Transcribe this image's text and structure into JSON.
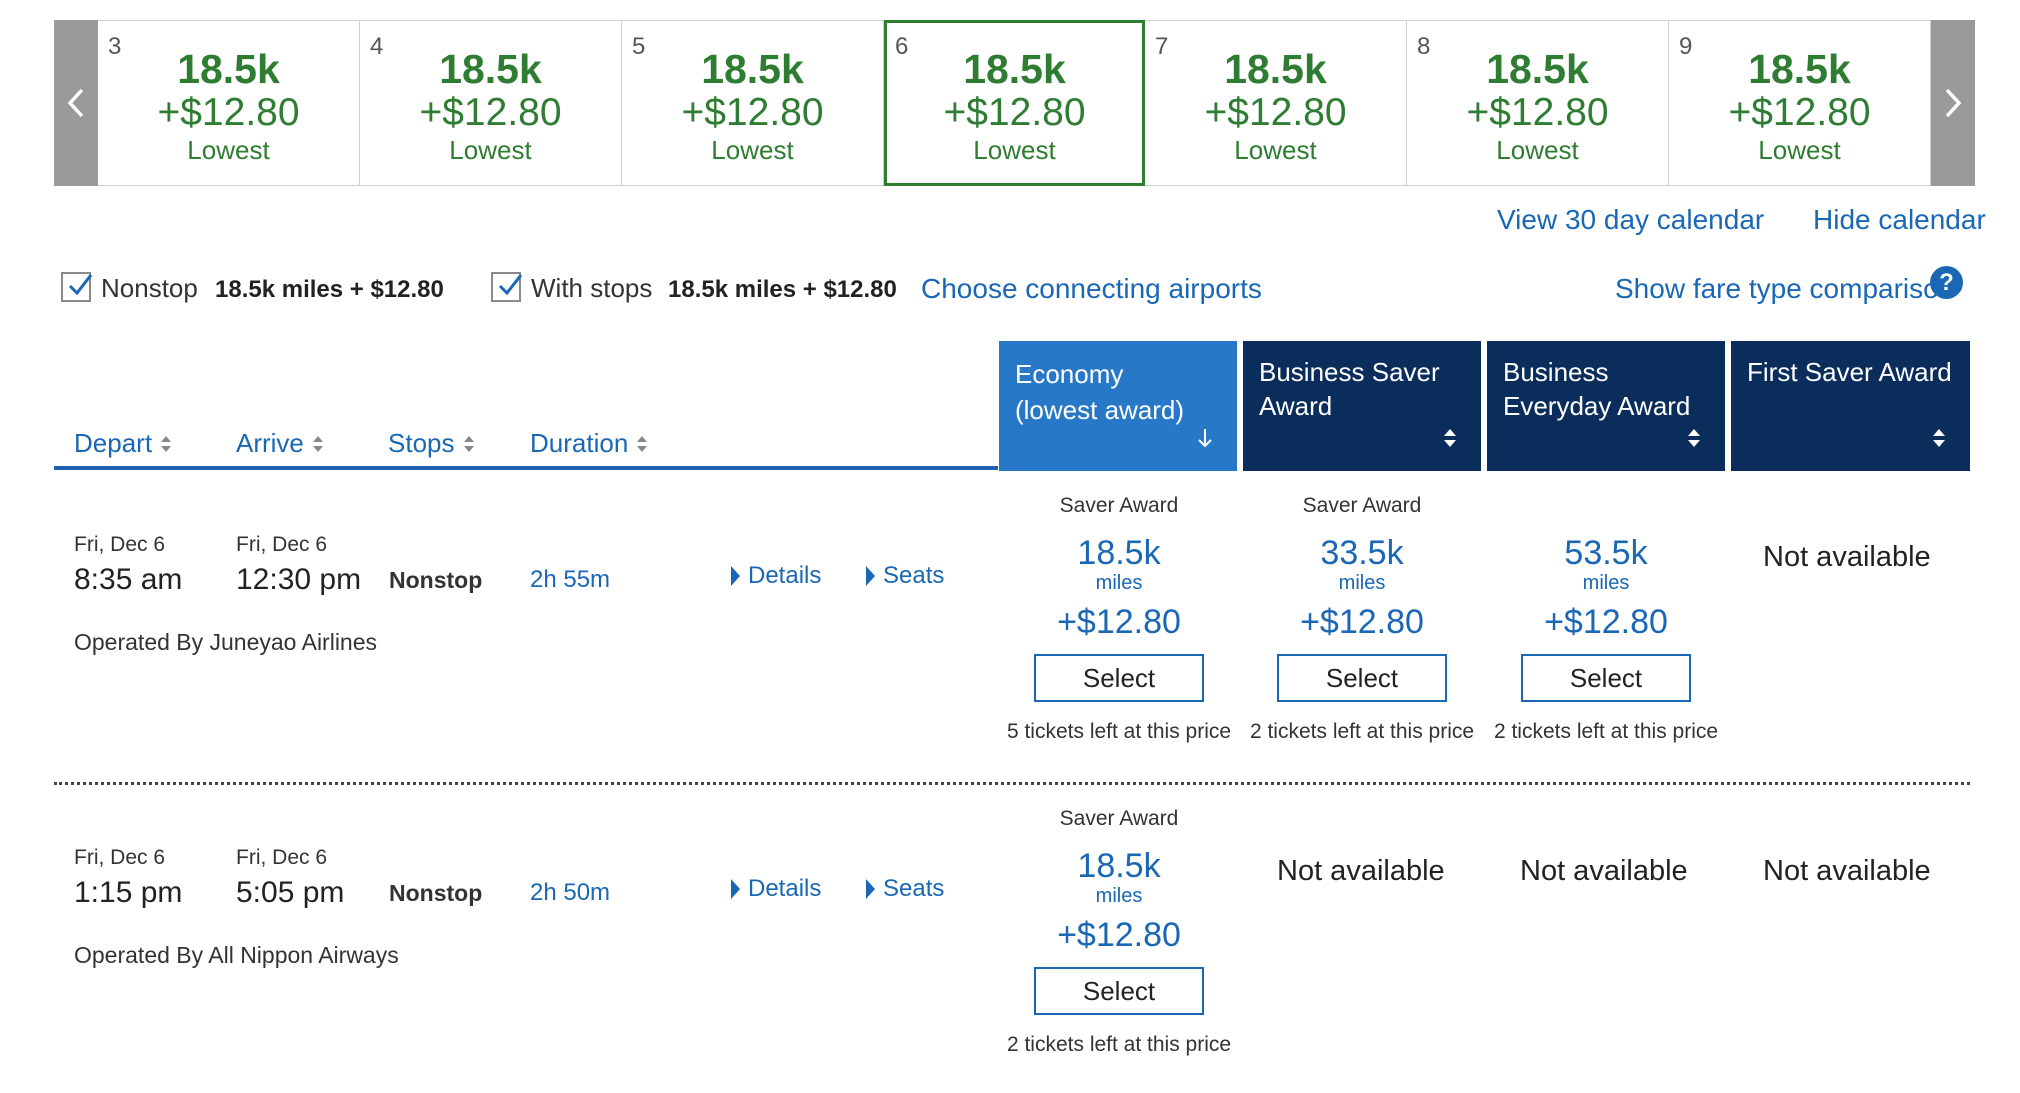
{
  "calendar": {
    "days": [
      {
        "num": "3",
        "miles": "18.5k",
        "fee": "+$12.80",
        "label": "Lowest"
      },
      {
        "num": "4",
        "miles": "18.5k",
        "fee": "+$12.80",
        "label": "Lowest"
      },
      {
        "num": "5",
        "miles": "18.5k",
        "fee": "+$12.80",
        "label": "Lowest"
      },
      {
        "num": "6",
        "miles": "18.5k",
        "fee": "+$12.80",
        "label": "Lowest"
      },
      {
        "num": "7",
        "miles": "18.5k",
        "fee": "+$12.80",
        "label": "Lowest"
      },
      {
        "num": "8",
        "miles": "18.5k",
        "fee": "+$12.80",
        "label": "Lowest"
      },
      {
        "num": "9",
        "miles": "18.5k",
        "fee": "+$12.80",
        "label": "Lowest"
      }
    ],
    "selected_day": "6",
    "view_30_label": "View 30 day calendar",
    "hide_label": "Hide calendar"
  },
  "filters": {
    "nonstop": {
      "label": "Nonstop",
      "checked": true,
      "price": "18.5k miles + $12.80"
    },
    "with_stops": {
      "label": "With stops",
      "checked": true,
      "price": "18.5k miles + $12.80"
    },
    "connecting_link": "Choose connecting airports",
    "fare_comparison_link": "Show fare type comparison",
    "help_glyph": "?"
  },
  "columns": {
    "depart": "Depart",
    "arrive": "Arrive",
    "stops": "Stops",
    "duration": "Duration"
  },
  "fare_headers": [
    {
      "line1": "Economy",
      "line2": "(lowest award)",
      "active": true
    },
    {
      "line1": "Business Saver",
      "line2": "Award",
      "active": false
    },
    {
      "line1": "Business",
      "line2": "Everyday Award",
      "active": false
    },
    {
      "line1": "First Saver Award",
      "line2": "",
      "active": false
    }
  ],
  "colors": {
    "green": "#2e7d32",
    "blue_link": "#1a67b5",
    "header_active": "#2878c8",
    "header_dark": "#0b2d5c"
  },
  "flights": [
    {
      "depart_date": "Fri, Dec 6",
      "depart_time": "8:35 am",
      "arrive_date": "Fri, Dec 6",
      "arrive_time": "12:30 pm",
      "stops": "Nonstop",
      "duration": "2h 55m",
      "details_label": "Details",
      "seats_label": "Seats",
      "operated_by": "Operated By Juneyao Airlines",
      "fares": [
        {
          "type": "Saver Award",
          "miles": "18.5k",
          "unit": "miles",
          "tax": "+$12.80",
          "select": "Select",
          "tickets": "5 tickets left at this price"
        },
        {
          "type": "Saver Award",
          "miles": "33.5k",
          "unit": "miles",
          "tax": "+$12.80",
          "select": "Select",
          "tickets": "2 tickets left at this price"
        },
        {
          "type": "",
          "miles": "53.5k",
          "unit": "miles",
          "tax": "+$12.80",
          "select": "Select",
          "tickets": "2 tickets left at this price"
        },
        {
          "not_available": "Not available"
        }
      ]
    },
    {
      "depart_date": "Fri, Dec 6",
      "depart_time": "1:15 pm",
      "arrive_date": "Fri, Dec 6",
      "arrive_time": "5:05 pm",
      "stops": "Nonstop",
      "duration": "2h 50m",
      "details_label": "Details",
      "seats_label": "Seats",
      "operated_by": "Operated By All Nippon Airways",
      "fares": [
        {
          "type": "Saver Award",
          "miles": "18.5k",
          "unit": "miles",
          "tax": "+$12.80",
          "select": "Select",
          "tickets": "2 tickets left at this price"
        },
        {
          "not_available": "Not available"
        },
        {
          "not_available": "Not available"
        },
        {
          "not_available": "Not available"
        }
      ]
    }
  ]
}
